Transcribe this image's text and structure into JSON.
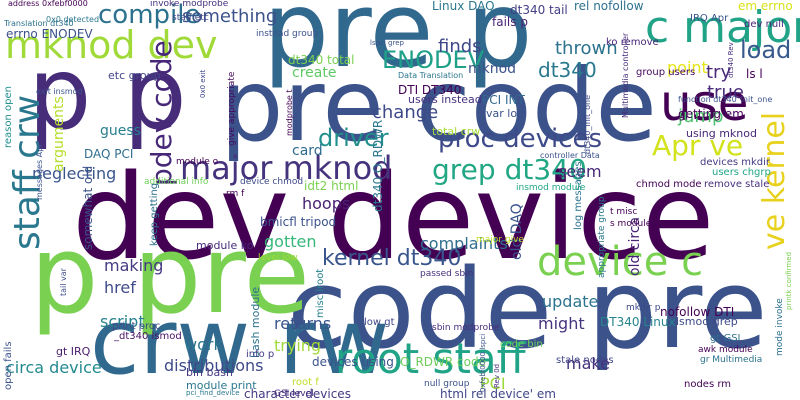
{
  "words": [
    {
      "text": "dev device",
      "color": "#440154"
    },
    {
      "text": "code pre",
      "color": "#3b528b"
    },
    {
      "text": "pre p",
      "color": "#31688e"
    },
    {
      "text": "pre code",
      "color": "#3b528b"
    },
    {
      "text": "crw rw",
      "color": "#31688e"
    },
    {
      "text": "p pre",
      "color": "#7ad151"
    },
    {
      "text": "p p",
      "color": "#472c7a"
    },
    {
      "text": "root staff",
      "color": "#20a386"
    },
    {
      "text": "use",
      "color": "#440154"
    },
    {
      "text": "c major",
      "color": "#20a386"
    },
    {
      "text": "mknod dev",
      "color": "#a0da39"
    },
    {
      "text": "device c",
      "color": "#7ad151"
    },
    {
      "text": "staff crw",
      "color": "#2a788e"
    },
    {
      "text": "major mknod",
      "color": "#46337e"
    },
    {
      "text": "proc devices",
      "color": "#3e4a89"
    },
    {
      "text": "ve kernel",
      "color": "#e8d11c"
    },
    {
      "text": "Apr ve",
      "color": "#d2e21b"
    },
    {
      "text": "grep dt340",
      "color": "#22a785"
    },
    {
      "text": "kernel dt340",
      "color": "#39568c"
    },
    {
      "text": "pdev code",
      "color": "#472878"
    },
    {
      "text": "compile",
      "color": "#2c728e"
    },
    {
      "text": "ENODEV",
      "color": "#1fa088"
    },
    {
      "text": "driver",
      "color": "#21908d"
    },
    {
      "text": "load",
      "color": "#38598c"
    },
    {
      "text": "dt340",
      "color": "#2a788e"
    },
    {
      "text": "change",
      "color": "#3e4989"
    },
    {
      "text": "thrown",
      "color": "#2c728e"
    },
    {
      "text": "something",
      "color": "#3b528b"
    },
    {
      "text": "finds",
      "color": "#3f4889"
    },
    {
      "text": "jump",
      "color": "#4ac16d"
    },
    {
      "text": "try",
      "color": "#482878"
    },
    {
      "text": "true",
      "color": "#472a7a"
    },
    {
      "text": "complaints",
      "color": "#2e6f8e"
    },
    {
      "text": "hoops",
      "color": "#482173"
    },
    {
      "text": "gotten",
      "color": "#35b779"
    },
    {
      "text": "making",
      "color": "#443a83"
    },
    {
      "text": "update",
      "color": "#2c738e"
    },
    {
      "text": "might",
      "color": "#46337e"
    },
    {
      "text": "script",
      "color": "#26828e"
    },
    {
      "text": "href",
      "color": "#3e4a89"
    },
    {
      "text": "work",
      "color": "#2a768e"
    },
    {
      "text": "trying",
      "color": "#9fda3a"
    },
    {
      "text": "returns",
      "color": "#3a548c"
    },
    {
      "text": "distributions",
      "color": "#3e4a89"
    },
    {
      "text": "circa device",
      "color": "#23898e"
    },
    {
      "text": "make",
      "color": "#46307e"
    },
    {
      "text": "PCI",
      "color": "#9bd93c"
    },
    {
      "text": "neglecting",
      "color": "#39568c"
    },
    {
      "text": "guess",
      "color": "#277f8e"
    },
    {
      "text": "create",
      "color": "#5ec962"
    },
    {
      "text": "card",
      "color": "#2f6c8e"
    },
    {
      "text": "arguments",
      "color": "#b5de2b"
    },
    {
      "text": "seem",
      "color": "#482878"
    },
    {
      "text": "point",
      "color": "#e5e419"
    },
    {
      "text": "old DAQ",
      "color": "#3a548c"
    },
    {
      "text": "old circa",
      "color": "#482475"
    },
    {
      "text": "mknod",
      "color": "#3b528b"
    },
    {
      "text": "DTI DT340",
      "color": "#440154"
    },
    {
      "text": "PCI INT",
      "color": "#31688e"
    },
    {
      "text": "getting em",
      "color": "#46075a"
    },
    {
      "text": "dt340 total",
      "color": "#7ad151"
    },
    {
      "text": "ls l",
      "color": "#440154"
    },
    {
      "text": "em errno",
      "color": "#d8e219"
    },
    {
      "text": "rel nofollow",
      "color": "#2d708e"
    },
    {
      "text": "dt340 tail",
      "color": "#433e85"
    },
    {
      "text": "Linux DAQ",
      "color": "#2a778e"
    },
    {
      "text": "fails p",
      "color": "#482475"
    },
    {
      "text": "errno ENODEV",
      "color": "#3b528b"
    },
    {
      "text": "users instead",
      "color": "#46307e"
    },
    {
      "text": "nofollow DTI",
      "color": "#440154"
    },
    {
      "text": "character devices",
      "color": "#443983"
    },
    {
      "text": "html rel device' em",
      "color": "#3f4788"
    },
    {
      "text": "devices using",
      "color": "#3b528b"
    },
    {
      "text": "O_RDWR code",
      "color": "#6ccd5a"
    },
    {
      "text": "DT340 Linux",
      "color": "#25848e"
    },
    {
      "text": "lsmod grep",
      "color": "#3e4a89"
    },
    {
      "text": "module print",
      "color": "#2a788e"
    },
    {
      "text": "bin bash",
      "color": "#453781"
    },
    {
      "text": "bash module",
      "color": "#2d718e"
    },
    {
      "text": "gt IRQ",
      "color": "#481b6d"
    },
    {
      "text": "DAQ PCI",
      "color": "#2e6e8e"
    },
    {
      "text": "etc group",
      "color": "#404688"
    },
    {
      "text": "module ko",
      "color": "#472c7a"
    },
    {
      "text": "bmicfl tripod",
      "color": "#3b528b"
    },
    {
      "text": "dt340 O_RDWR",
      "color": "#2a778e"
    },
    {
      "text": "idt2 html",
      "color": "#7ad151"
    },
    {
      "text": "total crw",
      "color": "#a5db36"
    },
    {
      "text": "var log",
      "color": "#3b528b"
    },
    {
      "text": "using mknod",
      "color": "#482878"
    },
    {
      "text": "devices mkdir",
      "color": "#443a83"
    },
    {
      "text": "users chgrp",
      "color": "#22a785"
    },
    {
      "text": "chmod mode",
      "color": "#440154"
    },
    {
      "text": "remove stale",
      "color": "#46307e"
    },
    {
      "text": "stale nodes",
      "color": "#414487"
    },
    {
      "text": "log messages",
      "color": "#2c728e"
    },
    {
      "text": "nodes rm",
      "color": "#440154"
    },
    {
      "text": "group users",
      "color": "#46085c"
    },
    {
      "text": "ko remove",
      "color": "#482576"
    },
    {
      "text": "IRQ Apr",
      "color": "#3b528b"
    },
    {
      "text": "dev null",
      "color": "#482979"
    },
    {
      "text": "gt GSI",
      "color": "#2d708e"
    },
    {
      "text": "low gt",
      "color": "#3f4788"
    },
    {
      "text": "code bin",
      "color": "#6ece58"
    },
    {
      "text": "root f",
      "color": "#bddf26"
    },
    {
      "text": "misc lroot",
      "color": "#26818e"
    },
    {
      "text": "keep getting",
      "color": "#2c718e"
    },
    {
      "text": "print proc",
      "color": "#3e4989"
    },
    {
      "text": "info p",
      "color": "#433d84"
    },
    {
      "text": "_dt340 lsmod",
      "color": "#471063"
    },
    {
      "text": "reason open",
      "color": "#21908d"
    },
    {
      "text": "open fails",
      "color": "#3b528b"
    },
    {
      "text": "invoke modprobe",
      "color": "#46307e"
    },
    {
      "text": "staff etc",
      "color": "#3f4889"
    },
    {
      "text": "address 0xfebf0000",
      "color": "#440154"
    },
    {
      "text": "0x0 detected",
      "color": "#2a788e"
    },
    {
      "text": "exit insmod",
      "color": "#3b528b"
    },
    {
      "text": "sbin modprobe",
      "color": "#46307e"
    },
    {
      "text": "mode invoke",
      "color": "#2d708e"
    },
    {
      "text": "module o",
      "color": "#440154"
    },
    {
      "text": "mkdir p",
      "color": "#3e4989"
    },
    {
      "text": "s module",
      "color": "#440154"
    },
    {
      "text": "t misc",
      "color": "#440154"
    },
    {
      "text": "major give",
      "color": "#bddf26"
    },
    {
      "text": "passed sbin",
      "color": "#46307e"
    },
    {
      "text": "null group",
      "color": "#3b528b"
    },
    {
      "text": "gr Multimedia",
      "color": "#2c728e"
    },
    {
      "text": "awk module",
      "color": "#440154"
    },
    {
      "text": "GSI level",
      "color": "#472c7a"
    },
    {
      "text": "level low",
      "color": "#a0da39"
    },
    {
      "text": "device chmod",
      "color": "#3e4989"
    },
    {
      "text": "rm f",
      "color": "#440154"
    },
    {
      "text": "additional info",
      "color": "#6ece58"
    },
    {
      "text": "give appropriate",
      "color": "#46085c"
    },
    {
      "text": "instead group",
      "color": "#3b528b"
    },
    {
      "text": "Translation dt340",
      "color": "#2c728e"
    },
    {
      "text": "messages Apr",
      "color": "#3b528b"
    },
    {
      "text": "tail var",
      "color": "#3e4a89"
    },
    {
      "text": "somewhat old",
      "color": "#3b528b"
    },
    {
      "text": "appropriate group",
      "color": "#2a788e"
    },
    {
      "text": "dt340_init_one",
      "color": "#3e4989"
    },
    {
      "text": "modprobe t",
      "color": "#440154"
    },
    {
      "text": "insmod module",
      "color": "#22a785"
    },
    {
      "text": "Data Translation",
      "color": "#2a778e"
    },
    {
      "text": "controller Data",
      "color": "#3b528b"
    },
    {
      "text": "Multimedia controller",
      "color": "#472c7a"
    },
    {
      "text": "function dt340_init_one",
      "color": "#3b528b"
    },
    {
      "text": "printk confirmed",
      "color": "#7ad151"
    },
    {
      "text": "pci_find_device",
      "color": "#2a788e"
    },
    {
      "text": "lspci grep",
      "color": "#3b528b"
    },
    {
      "text": "0x0 exit",
      "color": "#3e4989"
    },
    {
      "text": "dt340 Rev",
      "color": "#46307e"
    },
    {
      "text": "Rev 0d",
      "color": "#472c7a"
    },
    {
      "text": "0xfebf0000 lspci",
      "color": "#3b528b"
    }
  ]
}
